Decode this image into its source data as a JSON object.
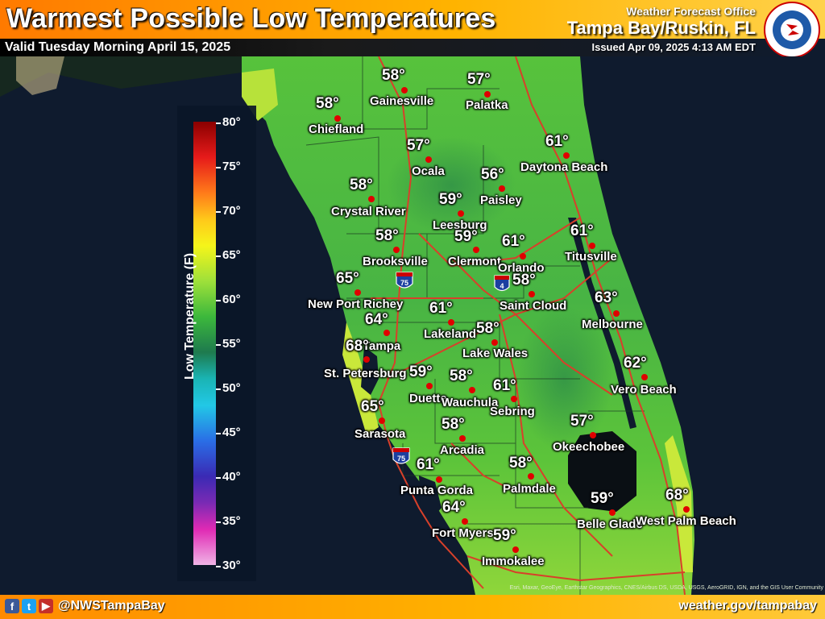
{
  "header": {
    "title": "Warmest Possible Low Temperatures",
    "valid": "Valid Tuesday Morning April 15, 2025",
    "office": "Weather Forecast Office",
    "city": "Tampa Bay/Ruskin, FL",
    "issued": "Issued Apr 09, 2025 4:13 AM EDT"
  },
  "legend": {
    "title": "Low Temperature (F)",
    "ticks": [
      "80°",
      "75°",
      "70°",
      "65°",
      "60°",
      "55°",
      "50°",
      "45°",
      "40°",
      "35°",
      "30°"
    ]
  },
  "interstates": [
    "75",
    "4",
    "75"
  ],
  "stations": [
    {
      "name": "Gainesville",
      "temp": "58°"
    },
    {
      "name": "Palatka",
      "temp": "57°"
    },
    {
      "name": "Chiefland",
      "temp": "58°"
    },
    {
      "name": "Ocala",
      "temp": "57°"
    },
    {
      "name": "Daytona Beach",
      "temp": "61°"
    },
    {
      "name": "Paisley",
      "temp": "56°"
    },
    {
      "name": "Crystal River",
      "temp": "58°"
    },
    {
      "name": "Leesburg",
      "temp": "59°"
    },
    {
      "name": "Brooksville",
      "temp": "58°"
    },
    {
      "name": "Clermont",
      "temp": "59°"
    },
    {
      "name": "Orlando",
      "temp": "61°"
    },
    {
      "name": "Titusville",
      "temp": "61°"
    },
    {
      "name": "New Port Richey",
      "temp": "65°"
    },
    {
      "name": "Saint Cloud",
      "temp": "58°"
    },
    {
      "name": "Tampa",
      "temp": "64°"
    },
    {
      "name": "Lakeland",
      "temp": "61°"
    },
    {
      "name": "Melbourne",
      "temp": "63°"
    },
    {
      "name": "Lake Wales",
      "temp": "58°"
    },
    {
      "name": "St. Petersburg",
      "temp": "68°"
    },
    {
      "name": "Duette",
      "temp": "59°"
    },
    {
      "name": "Wauchula",
      "temp": "58°"
    },
    {
      "name": "Sebring",
      "temp": "61°"
    },
    {
      "name": "Vero Beach",
      "temp": "62°"
    },
    {
      "name": "Sarasota",
      "temp": "65°"
    },
    {
      "name": "Arcadia",
      "temp": "58°"
    },
    {
      "name": "Okeechobee",
      "temp": "57°"
    },
    {
      "name": "Punta Gorda",
      "temp": "61°"
    },
    {
      "name": "Palmdale",
      "temp": "58°"
    },
    {
      "name": "Fort Myers",
      "temp": "64°"
    },
    {
      "name": "Belle Glade",
      "temp": "59°"
    },
    {
      "name": "West Palm Beach",
      "temp": "68°"
    },
    {
      "name": "Immokalee",
      "temp": "59°"
    }
  ],
  "footer": {
    "handle": "@NWSTampaBay",
    "website": "weather.gov/tampabay",
    "attribution": "Esri, Maxar, GeoEye, Earthstar Geographics, CNES/Airbus DS, USDA, USGS, AeroGRID, IGN, and the GIS User Community"
  },
  "colors": {
    "header_orange": "#ff7a00",
    "header_yellow": "#ffd24a",
    "ocean": "#0f1b2e",
    "land_green": "#4fbf3a",
    "land_dark_green": "#2d8a3e",
    "station_dot": "#e00000",
    "road": "#d8402a"
  },
  "icons": [
    "facebook-icon",
    "twitter-icon",
    "youtube-icon",
    "nws-logo"
  ]
}
